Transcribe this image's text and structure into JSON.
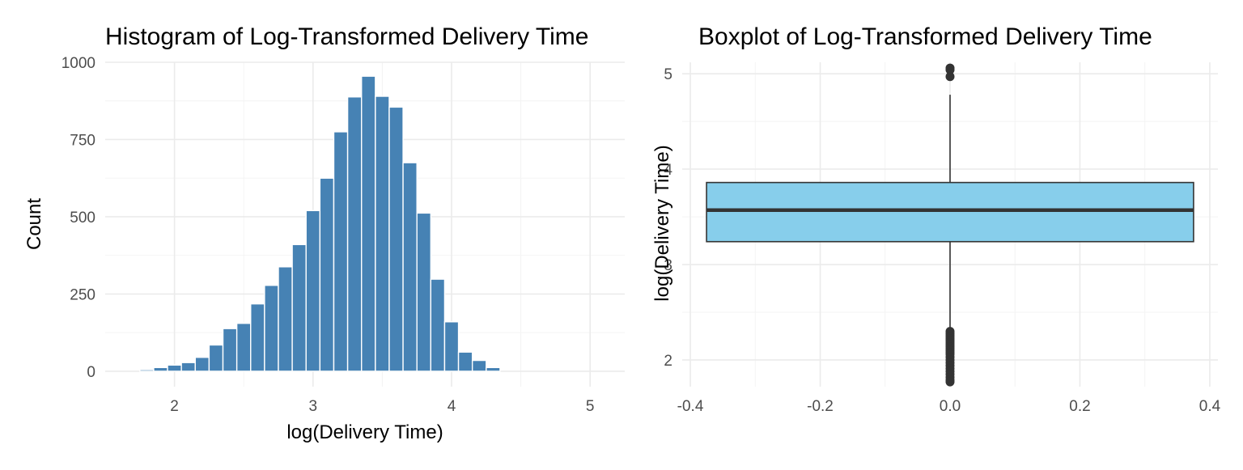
{
  "chart_data": [
    {
      "type": "bar",
      "subtype": "histogram",
      "title": "Histogram of Log-Transformed Delivery Time",
      "xlabel": "log(Delivery Time)",
      "ylabel": "Count",
      "xlim": [
        1.5,
        5.25
      ],
      "ylim": [
        -50,
        1000
      ],
      "xticks": [
        2,
        3,
        4,
        5
      ],
      "yticks": [
        0,
        250,
        500,
        750,
        1000
      ],
      "bin_width": 0.1,
      "bins": [
        {
          "x": 1.8,
          "count": 5
        },
        {
          "x": 1.9,
          "count": 12
        },
        {
          "x": 2.0,
          "count": 20
        },
        {
          "x": 2.1,
          "count": 28
        },
        {
          "x": 2.2,
          "count": 45
        },
        {
          "x": 2.3,
          "count": 85
        },
        {
          "x": 2.4,
          "count": 138
        },
        {
          "x": 2.5,
          "count": 155
        },
        {
          "x": 2.6,
          "count": 218
        },
        {
          "x": 2.7,
          "count": 278
        },
        {
          "x": 2.8,
          "count": 338
        },
        {
          "x": 2.9,
          "count": 410
        },
        {
          "x": 3.0,
          "count": 520
        },
        {
          "x": 3.1,
          "count": 625
        },
        {
          "x": 3.2,
          "count": 775
        },
        {
          "x": 3.3,
          "count": 888
        },
        {
          "x": 3.4,
          "count": 955
        },
        {
          "x": 3.5,
          "count": 890
        },
        {
          "x": 3.6,
          "count": 855
        },
        {
          "x": 3.7,
          "count": 675
        },
        {
          "x": 3.8,
          "count": 512
        },
        {
          "x": 3.9,
          "count": 298
        },
        {
          "x": 4.0,
          "count": 160
        },
        {
          "x": 4.1,
          "count": 62
        },
        {
          "x": 4.2,
          "count": 35
        },
        {
          "x": 4.3,
          "count": 12
        }
      ],
      "grid": true,
      "bar_color": "#4682B4"
    },
    {
      "type": "boxplot",
      "title": "Boxplot of Log-Transformed Delivery Time",
      "xlabel": "",
      "ylabel": "log(Delivery Time)",
      "xlim": [
        -0.4125,
        0.4125
      ],
      "ylim": [
        1.72,
        5.12
      ],
      "xticks": [
        -0.4,
        -0.2,
        0.0,
        0.2,
        0.4
      ],
      "xtick_labels": [
        "-0.4",
        "-0.2",
        "0.0",
        "0.2",
        "0.4"
      ],
      "yticks": [
        2,
        3,
        4,
        5
      ],
      "box": {
        "x": 0.0,
        "half_width": 0.375,
        "q1": 3.24,
        "median": 3.57,
        "q3": 3.86,
        "whisker_low": 2.31,
        "whisker_high": 4.78
      },
      "outliers": [
        5.06,
        5.04,
        4.97,
        2.3,
        2.28,
        2.26,
        2.24,
        2.22,
        2.2,
        2.18,
        2.16,
        2.14,
        2.12,
        2.1,
        2.08,
        2.06,
        2.03,
        2.0,
        1.97,
        1.94,
        1.91,
        1.88,
        1.85,
        1.82,
        1.79,
        1.77
      ],
      "grid": true,
      "box_fill": "#87CEEB",
      "line_color": "#333333"
    }
  ]
}
